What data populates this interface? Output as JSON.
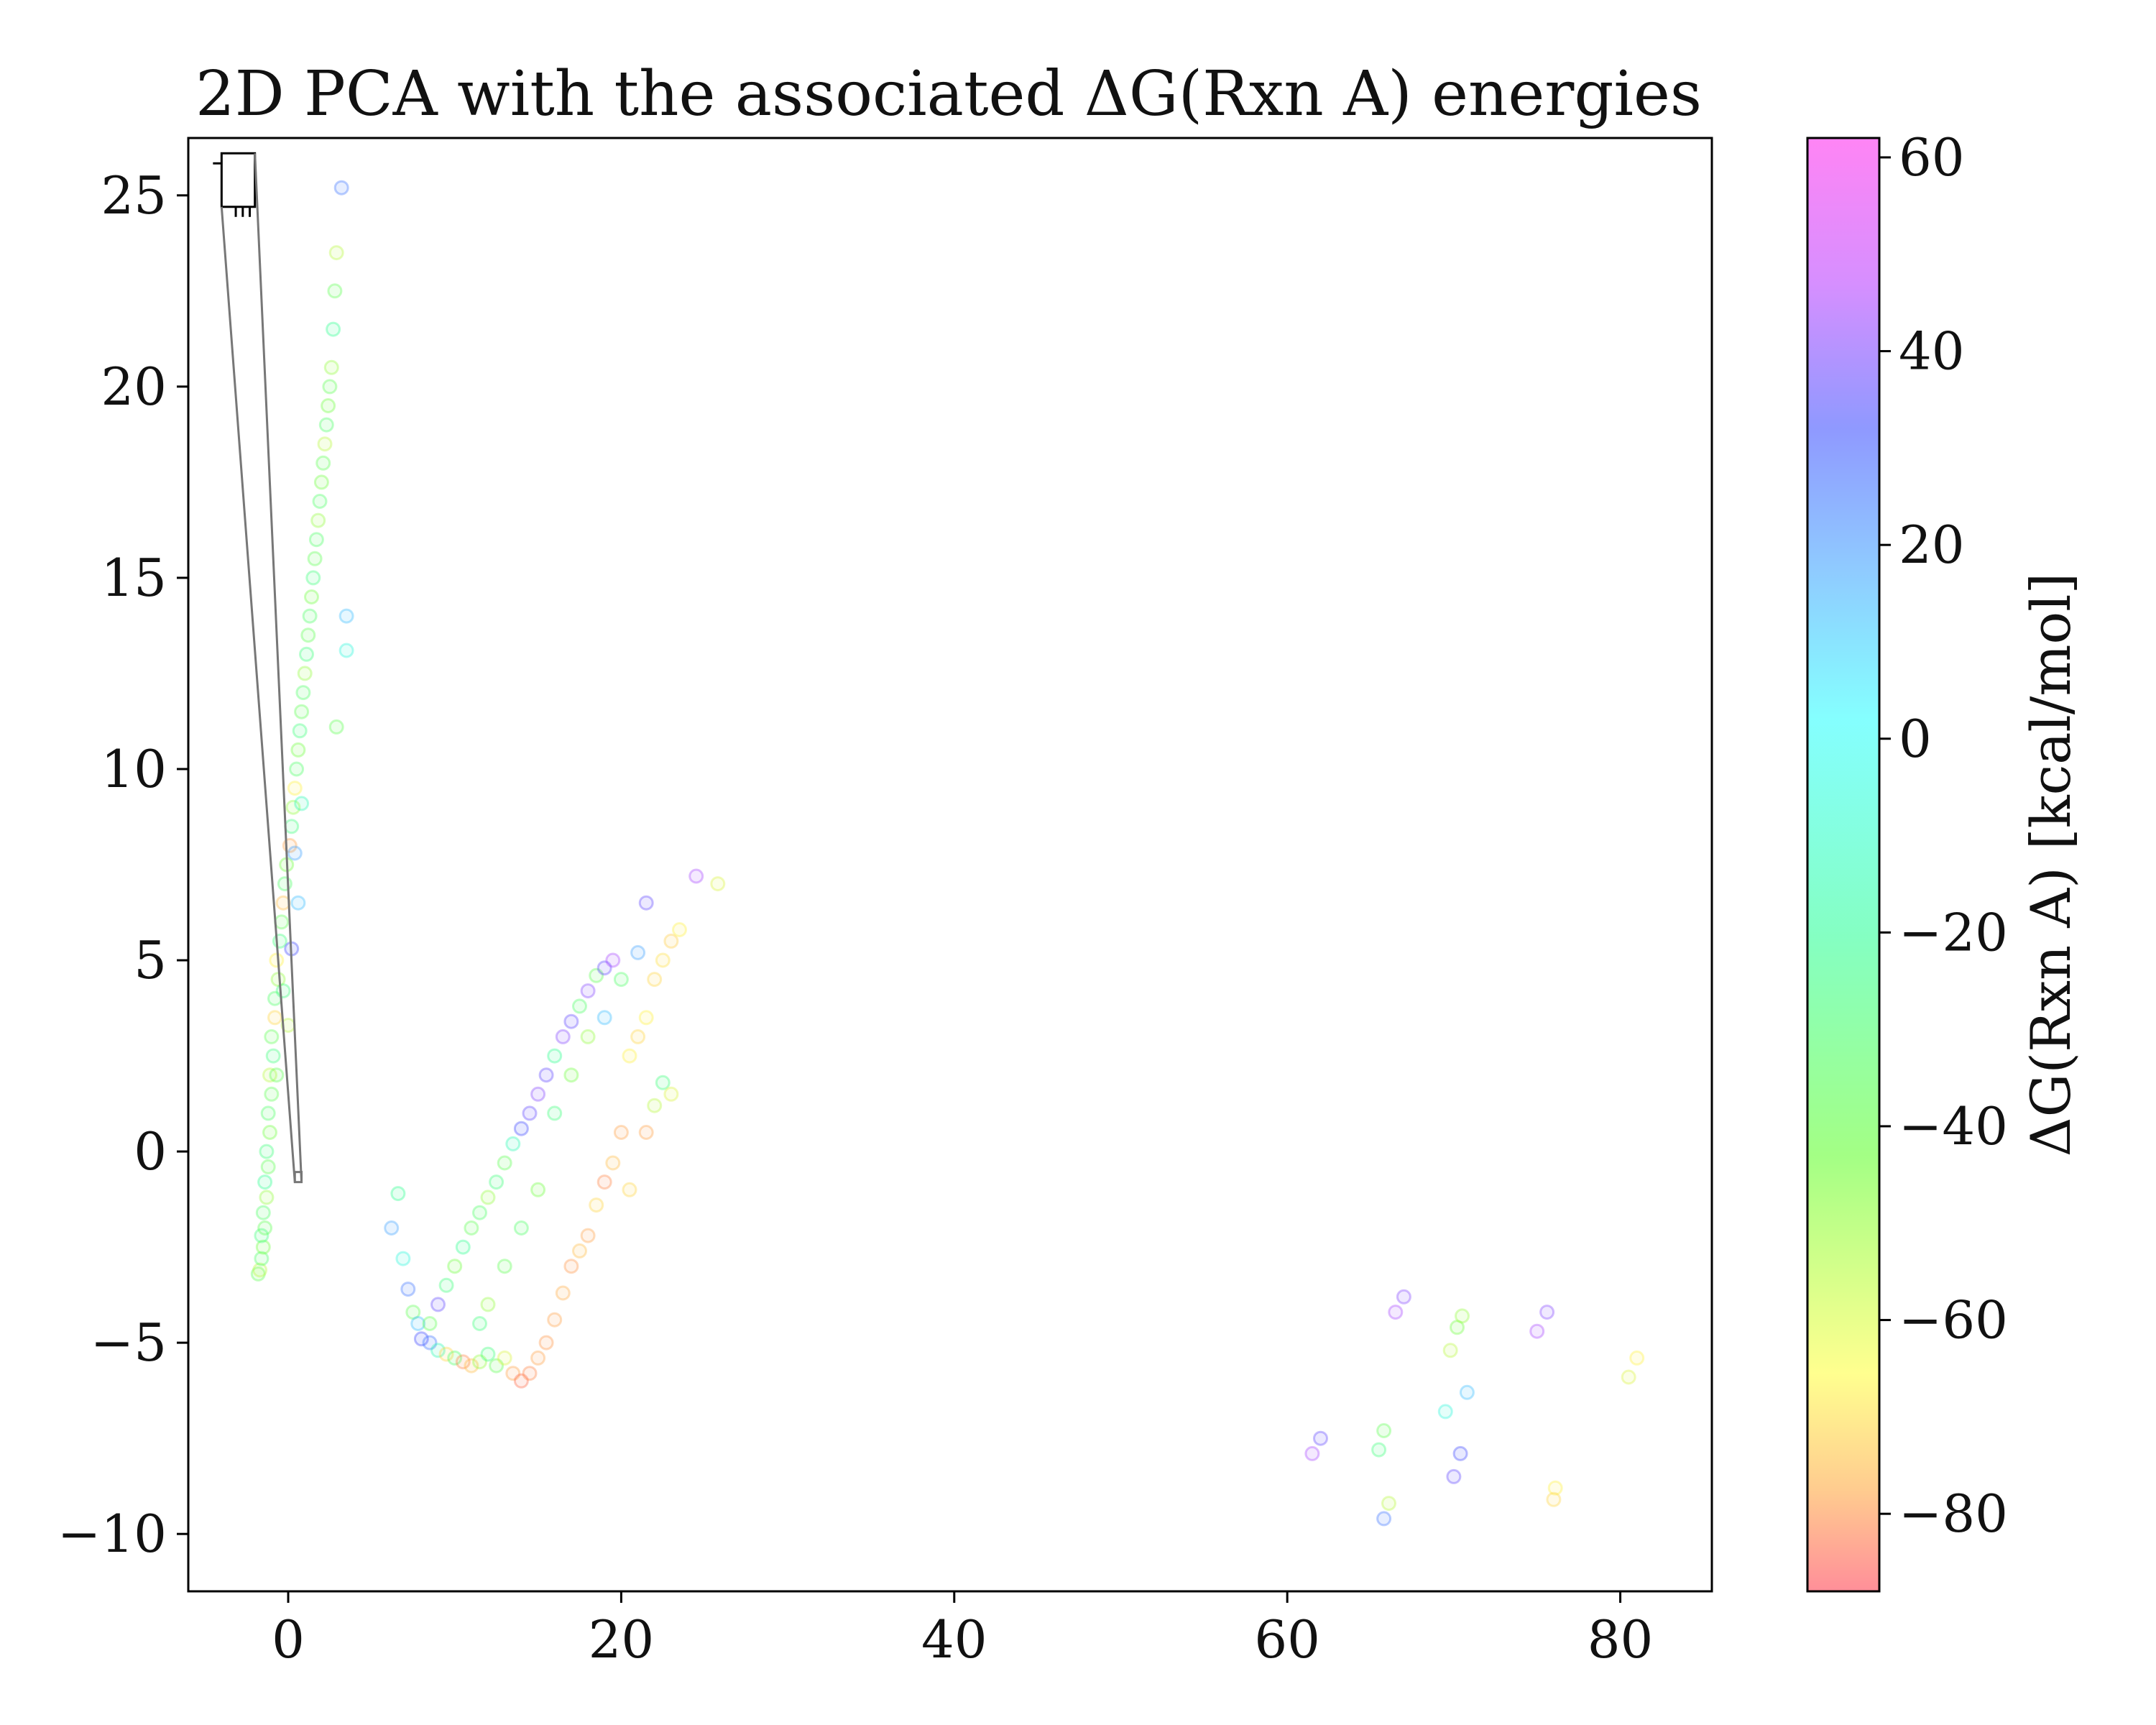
{
  "chart_data": {
    "type": "scatter",
    "title": "2D PCA with the associated ΔG(Rxn A) energies",
    "xlabel": "",
    "ylabel": "",
    "xlim": [
      -6,
      85.5
    ],
    "ylim": [
      -11.5,
      26.5
    ],
    "x_ticks": [
      0,
      20,
      40,
      60,
      80
    ],
    "y_ticks": [
      -10,
      -5,
      0,
      5,
      10,
      15,
      20,
      25
    ],
    "x_tick_labels": [
      "0",
      "20",
      "40",
      "60",
      "80"
    ],
    "y_tick_labels": [
      "−10",
      "−5",
      "0",
      "5",
      "10",
      "15",
      "20",
      "25"
    ],
    "colorbar": {
      "label": "ΔG(Rxn A) [kcal/mol]",
      "range": [
        -88,
        62
      ],
      "ticks": [
        60,
        40,
        20,
        0,
        -20,
        -40,
        -60,
        -80
      ],
      "tick_labels": [
        "60",
        "40",
        "20",
        "0",
        "−20",
        "−40",
        "−60",
        "−80"
      ],
      "colormap": "gist_rainbow",
      "colors": [
        "#ff0000",
        "#ffcc00",
        "#ffff00",
        "#00ff00",
        "#00ffff",
        "#0000ff",
        "#cc00ff",
        "#ff00cc"
      ]
    },
    "marker": {
      "style": "hollow-circle",
      "alpha": 0.12
    },
    "inset_marker": {
      "box_x": [
        -4,
        -2
      ],
      "box_y": [
        24.7,
        26.1
      ],
      "pointer_bottom_x": [
        0.4,
        0.8
      ],
      "pointer_bottom_y": -0.8,
      "color": "#777777"
    },
    "grid": false,
    "legend": "none",
    "series": [
      {
        "points": [
          [
            -1.8,
            -3.2,
            -30
          ],
          [
            -1.7,
            -3.1,
            -45
          ],
          [
            -1.6,
            -2.8,
            -25
          ],
          [
            -1.5,
            -2.5,
            -35
          ],
          [
            -1.6,
            -2.2,
            -20
          ],
          [
            -1.4,
            -2.0,
            -30
          ],
          [
            -1.5,
            -1.6,
            -25
          ],
          [
            -1.3,
            -1.2,
            -40
          ],
          [
            -1.4,
            -0.8,
            -15
          ],
          [
            -1.2,
            -0.4,
            -30
          ],
          [
            -1.3,
            0.0,
            -20
          ],
          [
            -1.1,
            0.5,
            -35
          ],
          [
            -1.2,
            1.0,
            -25
          ],
          [
            -1.0,
            1.5,
            -30
          ],
          [
            -1.1,
            2.0,
            -45
          ],
          [
            -0.9,
            2.5,
            -20
          ],
          [
            -1.0,
            3.0,
            -30
          ],
          [
            -0.8,
            3.5,
            -60
          ],
          [
            -0.8,
            4.0,
            -25
          ],
          [
            -0.6,
            4.5,
            -40
          ],
          [
            -0.7,
            5.0,
            -55
          ],
          [
            -0.5,
            5.5,
            -20
          ],
          [
            -0.4,
            6.0,
            -30
          ],
          [
            -0.3,
            6.5,
            -65
          ],
          [
            -0.2,
            7.0,
            -25
          ],
          [
            -0.1,
            7.5,
            -35
          ],
          [
            0.1,
            8.0,
            -70
          ],
          [
            0.2,
            8.5,
            -20
          ],
          [
            0.3,
            9.0,
            -40
          ],
          [
            0.4,
            9.5,
            -55
          ],
          [
            0.5,
            10.0,
            -25
          ],
          [
            0.6,
            10.5,
            -35
          ],
          [
            0.7,
            11.0,
            -20
          ],
          [
            0.8,
            11.5,
            -30
          ],
          [
            0.9,
            12.0,
            -25
          ],
          [
            1.0,
            12.5,
            -40
          ],
          [
            1.1,
            13.0,
            -20
          ],
          [
            1.2,
            13.5,
            -30
          ],
          [
            1.3,
            14.0,
            -25
          ],
          [
            1.4,
            14.5,
            -35
          ],
          [
            1.5,
            15.0,
            -20
          ],
          [
            1.6,
            15.5,
            -30
          ],
          [
            1.7,
            16.0,
            -25
          ],
          [
            1.8,
            16.5,
            -40
          ],
          [
            1.9,
            17.0,
            -25
          ],
          [
            2.0,
            17.5,
            -35
          ],
          [
            2.1,
            18.0,
            -30
          ],
          [
            2.2,
            18.5,
            -45
          ],
          [
            2.3,
            19.0,
            -25
          ],
          [
            2.4,
            19.5,
            -35
          ],
          [
            2.5,
            20.0,
            -30
          ],
          [
            2.6,
            20.5,
            -40
          ],
          [
            2.7,
            21.5,
            -15
          ],
          [
            2.8,
            22.5,
            -30
          ],
          [
            2.9,
            23.5,
            -45
          ],
          [
            3.2,
            25.2,
            20
          ],
          [
            3.5,
            14.0,
            10
          ],
          [
            3.5,
            13.1,
            -5
          ],
          [
            2.9,
            11.1,
            -30
          ],
          [
            0.6,
            6.5,
            10
          ],
          [
            0.2,
            5.3,
            25
          ],
          [
            -0.3,
            4.2,
            -20
          ],
          [
            0.0,
            3.3,
            -45
          ],
          [
            -0.7,
            2.0,
            -30
          ],
          [
            0.4,
            7.8,
            15
          ],
          [
            0.8,
            9.1,
            -10
          ],
          [
            6.2,
            -2.0,
            15
          ],
          [
            6.6,
            -1.1,
            -15
          ],
          [
            6.9,
            -2.8,
            -5
          ],
          [
            7.2,
            -3.6,
            20
          ],
          [
            7.5,
            -4.2,
            -30
          ],
          [
            7.8,
            -4.5,
            10
          ],
          [
            8.0,
            -4.9,
            25
          ],
          [
            8.5,
            -5.0,
            20
          ],
          [
            9.0,
            -5.2,
            -10
          ],
          [
            9.5,
            -5.3,
            -60
          ],
          [
            10.0,
            -5.4,
            -25
          ],
          [
            10.5,
            -5.5,
            -75
          ],
          [
            11.0,
            -5.6,
            -65
          ],
          [
            11.5,
            -5.5,
            -40
          ],
          [
            12.0,
            -5.3,
            -20
          ],
          [
            12.5,
            -5.6,
            -30
          ],
          [
            13.0,
            -5.4,
            -50
          ],
          [
            13.5,
            -5.8,
            -70
          ],
          [
            14.0,
            -6.0,
            -80
          ],
          [
            14.5,
            -5.8,
            -75
          ],
          [
            15.0,
            -5.4,
            -70
          ],
          [
            15.5,
            -5.0,
            -72
          ],
          [
            16.0,
            -4.4,
            -70
          ],
          [
            16.5,
            -3.7,
            -68
          ],
          [
            17.0,
            -3.0,
            -72
          ],
          [
            17.5,
            -2.6,
            -65
          ],
          [
            18.0,
            -2.2,
            -70
          ],
          [
            18.5,
            -1.4,
            -60
          ],
          [
            19.0,
            -0.8,
            -75
          ],
          [
            19.5,
            -0.3,
            -65
          ],
          [
            20.0,
            0.5,
            -70
          ],
          [
            9.5,
            -3.5,
            -20
          ],
          [
            10.0,
            -3.0,
            -35
          ],
          [
            10.5,
            -2.5,
            -15
          ],
          [
            11.0,
            -2.0,
            -30
          ],
          [
            11.5,
            -1.6,
            -25
          ],
          [
            12.0,
            -1.2,
            -40
          ],
          [
            12.5,
            -0.8,
            -20
          ],
          [
            13.0,
            -0.3,
            -30
          ],
          [
            13.5,
            0.2,
            -10
          ],
          [
            14.0,
            0.6,
            25
          ],
          [
            14.5,
            1.0,
            30
          ],
          [
            15.0,
            1.5,
            35
          ],
          [
            15.5,
            2.0,
            30
          ],
          [
            16.0,
            2.5,
            -15
          ],
          [
            16.5,
            3.0,
            35
          ],
          [
            17.0,
            3.4,
            30
          ],
          [
            17.5,
            3.8,
            -25
          ],
          [
            18.0,
            4.2,
            35
          ],
          [
            18.5,
            4.6,
            -30
          ],
          [
            19.0,
            4.8,
            30
          ],
          [
            19.5,
            5.0,
            40
          ],
          [
            16.0,
            1.0,
            -20
          ],
          [
            17.0,
            2.0,
            -35
          ],
          [
            18.0,
            3.0,
            -40
          ],
          [
            19.0,
            3.5,
            10
          ],
          [
            20.0,
            4.5,
            -25
          ],
          [
            21.0,
            5.2,
            15
          ],
          [
            21.5,
            6.5,
            30
          ],
          [
            20.5,
            2.5,
            -55
          ],
          [
            21.0,
            3.0,
            -60
          ],
          [
            21.5,
            3.5,
            -55
          ],
          [
            22.0,
            4.5,
            -60
          ],
          [
            22.5,
            5.0,
            -58
          ],
          [
            23.0,
            5.5,
            -62
          ],
          [
            23.5,
            5.8,
            -55
          ],
          [
            24.5,
            7.2,
            40
          ],
          [
            25.8,
            7.0,
            -50
          ],
          [
            20.5,
            -1.0,
            -60
          ],
          [
            21.5,
            0.5,
            -70
          ],
          [
            22.0,
            1.2,
            -45
          ],
          [
            22.5,
            1.8,
            -20
          ],
          [
            23.0,
            1.5,
            -50
          ],
          [
            13.0,
            -3.0,
            -30
          ],
          [
            14.0,
            -2.0,
            -25
          ],
          [
            15.0,
            -1.0,
            -35
          ],
          [
            12.0,
            -4.0,
            -40
          ],
          [
            11.5,
            -4.5,
            -20
          ],
          [
            9.0,
            -4.0,
            30
          ],
          [
            8.5,
            -4.5,
            -30
          ],
          [
            61.5,
            -7.9,
            40
          ],
          [
            62.0,
            -7.5,
            30
          ],
          [
            65.5,
            -7.8,
            -20
          ],
          [
            65.8,
            -7.3,
            -30
          ],
          [
            65.8,
            -9.6,
            20
          ],
          [
            66.1,
            -9.2,
            -45
          ],
          [
            66.5,
            -4.2,
            40
          ],
          [
            67.0,
            -3.8,
            35
          ],
          [
            69.5,
            -6.8,
            -5
          ],
          [
            69.8,
            -5.2,
            -45
          ],
          [
            70.0,
            -8.5,
            30
          ],
          [
            70.4,
            -7.9,
            25
          ],
          [
            70.2,
            -4.6,
            -35
          ],
          [
            70.5,
            -4.3,
            -40
          ],
          [
            70.8,
            -6.3,
            10
          ],
          [
            75.0,
            -4.7,
            40
          ],
          [
            75.6,
            -4.2,
            35
          ],
          [
            76.1,
            -8.8,
            -55
          ],
          [
            76.0,
            -9.1,
            -60
          ],
          [
            80.5,
            -5.9,
            -50
          ],
          [
            81.0,
            -5.4,
            -55
          ]
        ]
      }
    ]
  }
}
